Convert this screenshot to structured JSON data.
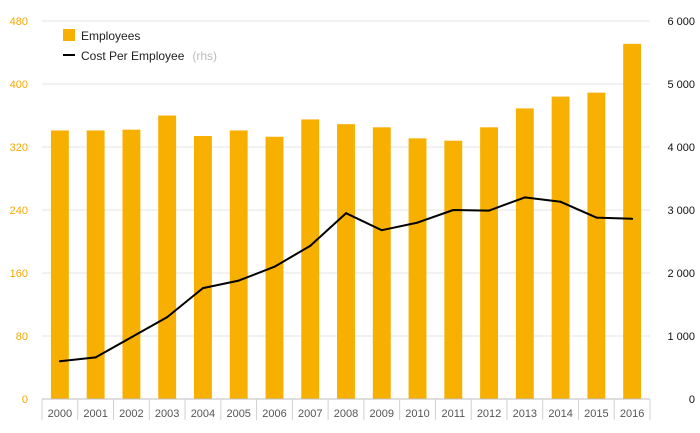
{
  "chart_data": {
    "type": "bar",
    "title": "",
    "xlabel": "",
    "ylabel": "",
    "categories": [
      "2000",
      "2001",
      "2002",
      "2003",
      "2004",
      "2005",
      "2006",
      "2007",
      "2008",
      "2009",
      "2010",
      "2011",
      "2012",
      "2013",
      "2014",
      "2015",
      "2016"
    ],
    "series": [
      {
        "name": "Employees",
        "type": "bar",
        "axis": "left",
        "color": "#f8b000",
        "values": [
          341,
          341,
          342,
          360,
          334,
          341,
          333,
          355,
          349,
          345,
          331,
          328,
          345,
          369,
          384,
          389,
          451
        ]
      },
      {
        "name": "Cost Per Employee",
        "type": "line",
        "axis": "right",
        "color": "#000000",
        "values": [
          600,
          660,
          980,
          1300,
          1760,
          1880,
          2100,
          2430,
          2950,
          2680,
          2800,
          3000,
          2990,
          3200,
          3130,
          2880,
          2860
        ]
      }
    ],
    "legend": {
      "placement": "top-left",
      "entries": [
        {
          "label": "Employees"
        },
        {
          "label": "Cost Per Employee",
          "note": "(rhs)"
        }
      ]
    },
    "y_left": {
      "ylim": [
        0,
        480
      ],
      "ticks": [
        "0",
        "80",
        "160",
        "240",
        "320",
        "400",
        "480"
      ],
      "color": "#f5a800"
    },
    "y_right": {
      "ylim": [
        0,
        6000
      ],
      "ticks": [
        "0",
        "1 000",
        "2 000",
        "3 000",
        "4 000",
        "5 000",
        "6 000"
      ],
      "color": "#111111"
    },
    "grid": true
  }
}
